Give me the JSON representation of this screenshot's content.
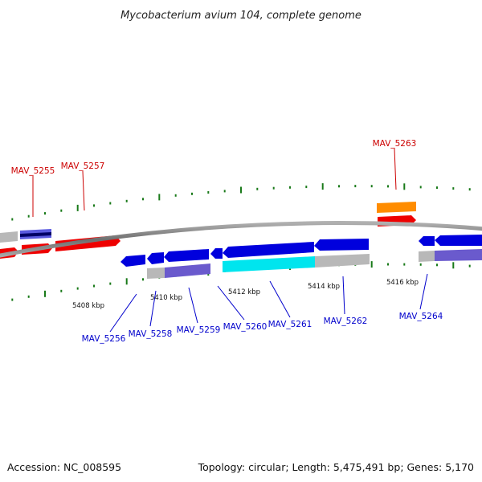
{
  "title": "Mycobacterium avium 104, complete genome",
  "footer": {
    "accession_label": "Accession:",
    "accession": "NC_008595",
    "topology_label": "Topology:",
    "topology": "circular",
    "length_label": "Length:",
    "length": "5,475,491 bp",
    "genes_label": "Genes:",
    "genes": "5,170"
  },
  "ruler": [
    "5408 kbp",
    "5410 kbp",
    "5412 kbp",
    "5414 kbp",
    "5416 kbp"
  ],
  "gene_labels": {
    "forward": [
      "MAV_5255",
      "MAV_5257",
      "MAV_5263"
    ],
    "reverse": [
      "MAV_5256",
      "MAV_5258",
      "MAV_5259",
      "MAV_5260",
      "MAV_5261",
      "MAV_5262",
      "MAV_5264"
    ]
  },
  "colors": {
    "forward_cds": "#ee0000",
    "reverse_cds": "#0000dd",
    "rna_feature": "#ff8c00",
    "highlight_feature": "#00e5ee",
    "protein_domain": "#6a5acd",
    "gray_feature": "#b8b8b8",
    "backbone": "#7a7a7a",
    "forward_label": "#cc0000",
    "reverse_label": "#0000cc",
    "tick": "#1a7a1a"
  }
}
